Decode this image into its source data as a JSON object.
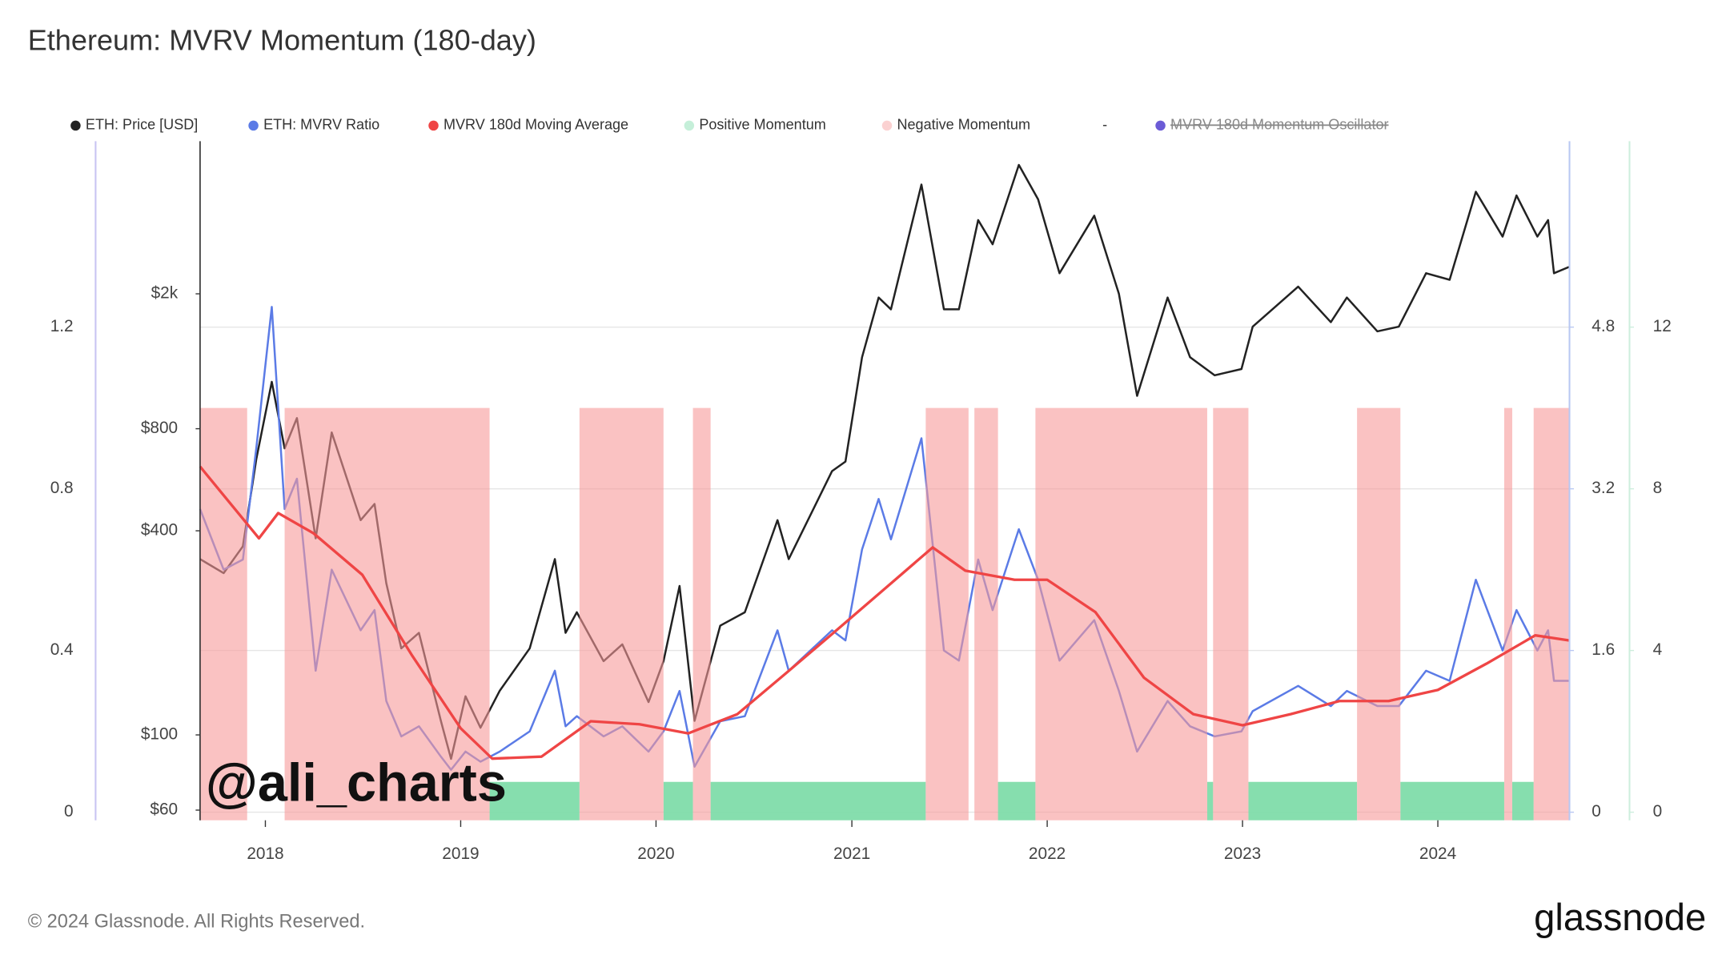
{
  "chart_data": {
    "type": "line",
    "title": "Ethereum: MVRV Momentum (180-day)",
    "footer": "© 2024 Glassnode. All Rights Reserved.",
    "brand": "glassnode",
    "watermark": "@ali_charts",
    "legend_separator": "-",
    "xlim": [
      "2017-09-01",
      "2024-09-03"
    ],
    "xticks": [
      {
        "value": "2018-01-01",
        "label": "2018"
      },
      {
        "value": "2019-01-01",
        "label": "2019"
      },
      {
        "value": "2020-01-01",
        "label": "2020"
      },
      {
        "value": "2021-01-01",
        "label": "2021"
      },
      {
        "value": "2022-01-01",
        "label": "2022"
      },
      {
        "value": "2023-01-01",
        "label": "2023"
      },
      {
        "value": "2024-01-01",
        "label": "2024"
      }
    ],
    "ylim": [
      -0.02,
      1.66
    ],
    "yticks": [
      0,
      0.4,
      0.8,
      1.2
    ],
    "price_lim": [
      56,
      5640
    ],
    "price_scale": "log",
    "price_ticks": [
      {
        "value": 60,
        "label": "$60"
      },
      {
        "value": 100,
        "label": "$100"
      },
      {
        "value": 400,
        "label": "$400"
      },
      {
        "value": 800,
        "label": "$800"
      },
      {
        "value": 2000,
        "label": "$2k"
      }
    ],
    "y2lim": [
      -0.08,
      6.64
    ],
    "y2ticks": [
      0,
      1.6,
      3.2,
      4.8
    ],
    "y3lim": [
      -0.2,
      16.6
    ],
    "y3ticks": [
      0,
      4,
      8,
      12
    ],
    "grid": true,
    "x": [
      "2017-09-01",
      "2017-10-15",
      "2017-11-20",
      "2017-12-15",
      "2018-01-13",
      "2018-02-06",
      "2018-03-01",
      "2018-04-05",
      "2018-05-05",
      "2018-06-28",
      "2018-07-24",
      "2018-08-15",
      "2018-09-12",
      "2018-10-15",
      "2018-11-25",
      "2018-12-14",
      "2019-01-10",
      "2019-02-07",
      "2019-03-15",
      "2019-05-10",
      "2019-06-26",
      "2019-07-16",
      "2019-08-06",
      "2019-09-25",
      "2019-10-30",
      "2019-12-18",
      "2020-01-15",
      "2020-02-14",
      "2020-03-13",
      "2020-04-30",
      "2020-06-15",
      "2020-08-15",
      "2020-09-05",
      "2020-11-25",
      "2020-12-20",
      "2021-01-20",
      "2021-02-20",
      "2021-03-15",
      "2021-05-11",
      "2021-06-22",
      "2021-07-20",
      "2021-08-25",
      "2021-09-21",
      "2021-11-09",
      "2021-12-15",
      "2022-01-24",
      "2022-03-30",
      "2022-05-15",
      "2022-06-18",
      "2022-08-14",
      "2022-09-25",
      "2022-11-10",
      "2022-12-30",
      "2023-01-20",
      "2023-04-15",
      "2023-06-15",
      "2023-07-15",
      "2023-09-10",
      "2023-10-20",
      "2023-12-10",
      "2024-01-23",
      "2024-03-12",
      "2024-05-01",
      "2024-05-27",
      "2024-07-05",
      "2024-07-25",
      "2024-08-05",
      "2024-09-02"
    ],
    "series": [
      {
        "name": "ETH: Price [USD]",
        "color": "#222222",
        "axis": "price",
        "values": [
          330,
          300,
          360,
          650,
          1100,
          700,
          860,
          380,
          780,
          430,
          480,
          280,
          180,
          200,
          110,
          85,
          130,
          105,
          135,
          180,
          330,
          200,
          230,
          165,
          185,
          125,
          165,
          275,
          110,
          210,
          230,
          430,
          330,
          600,
          640,
          1300,
          1950,
          1800,
          4200,
          1800,
          1800,
          3300,
          2800,
          4800,
          3800,
          2300,
          3400,
          2000,
          1000,
          1950,
          1300,
          1150,
          1200,
          1600,
          2100,
          1650,
          1950,
          1550,
          1600,
          2300,
          2200,
          4000,
          2950,
          3900,
          2950,
          3300,
          2300,
          2400
        ]
      },
      {
        "name": "ETH: MVRV Ratio",
        "color": "#5b7be6",
        "axis": "y2",
        "values": [
          3.0,
          2.4,
          2.5,
          3.6,
          5.0,
          3.0,
          3.3,
          1.4,
          2.4,
          1.8,
          2.0,
          1.1,
          0.75,
          0.85,
          0.55,
          0.42,
          0.6,
          0.5,
          0.6,
          0.8,
          1.4,
          0.85,
          0.95,
          0.75,
          0.85,
          0.6,
          0.8,
          1.2,
          0.45,
          0.9,
          0.95,
          1.8,
          1.4,
          1.8,
          1.7,
          2.6,
          3.1,
          2.7,
          3.7,
          1.6,
          1.5,
          2.5,
          2.0,
          2.8,
          2.3,
          1.5,
          1.9,
          1.2,
          0.6,
          1.1,
          0.85,
          0.75,
          0.8,
          1.0,
          1.25,
          1.05,
          1.2,
          1.05,
          1.05,
          1.4,
          1.3,
          2.3,
          1.6,
          2.0,
          1.6,
          1.8,
          1.3,
          1.3
        ]
      },
      {
        "name": "MVRV 180d Moving Average",
        "color": "#ef4545",
        "axis": "y2",
        "x": [
          "2017-09-01",
          "2017-12-20",
          "2018-01-25",
          "2018-04-01",
          "2018-07-01",
          "2018-10-01",
          "2019-01-01",
          "2019-03-01",
          "2019-06-01",
          "2019-09-01",
          "2019-12-01",
          "2020-03-01",
          "2020-06-01",
          "2020-09-01",
          "2020-12-01",
          "2021-03-01",
          "2021-06-01",
          "2021-08-01",
          "2021-11-01",
          "2022-01-01",
          "2022-04-01",
          "2022-07-01",
          "2022-10-01",
          "2023-01-01",
          "2023-04-01",
          "2023-07-01",
          "2023-10-01",
          "2024-01-01",
          "2024-04-01",
          "2024-07-01",
          "2024-09-02"
        ],
        "values": [
          3.42,
          2.71,
          2.96,
          2.76,
          2.35,
          1.56,
          0.83,
          0.53,
          0.55,
          0.9,
          0.87,
          0.78,
          0.97,
          1.38,
          1.79,
          2.2,
          2.62,
          2.39,
          2.3,
          2.3,
          1.98,
          1.33,
          0.97,
          0.86,
          0.97,
          1.1,
          1.1,
          1.21,
          1.47,
          1.75,
          1.7
        ]
      },
      {
        "name": "Positive Momentum",
        "color": "#7fdcaa",
        "axis": "y",
        "value": 0.075,
        "ranges": [
          [
            "2019-02-24",
            "2019-08-11"
          ],
          [
            "2020-01-15",
            "2020-03-10"
          ],
          [
            "2020-04-12",
            "2021-05-19"
          ],
          [
            "2021-10-01",
            "2021-12-10"
          ],
          [
            "2022-10-27",
            "2022-11-07"
          ],
          [
            "2023-01-12",
            "2023-08-03"
          ],
          [
            "2023-10-23",
            "2024-05-04"
          ],
          [
            "2024-05-19",
            "2024-06-28"
          ]
        ]
      },
      {
        "name": "Negative Momentum",
        "color": "#f79a9a",
        "axis": "y",
        "value": 1,
        "ranges": [
          [
            "2017-09-01",
            "2017-11-28"
          ],
          [
            "2018-02-06",
            "2019-02-24"
          ],
          [
            "2019-08-11",
            "2020-01-15"
          ],
          [
            "2020-03-10",
            "2020-04-12"
          ],
          [
            "2021-05-19",
            "2021-08-07"
          ],
          [
            "2021-08-18",
            "2021-10-01"
          ],
          [
            "2021-12-10",
            "2022-10-27"
          ],
          [
            "2022-11-07",
            "2023-01-12"
          ],
          [
            "2023-08-03",
            "2023-10-23"
          ],
          [
            "2024-05-04",
            "2024-05-19"
          ],
          [
            "2024-06-28",
            "2024-09-02"
          ]
        ]
      },
      {
        "name": "MVRV 180d Momentum Oscillator",
        "color": "#6b5bd6",
        "axis": "y3",
        "hidden": true
      }
    ]
  }
}
